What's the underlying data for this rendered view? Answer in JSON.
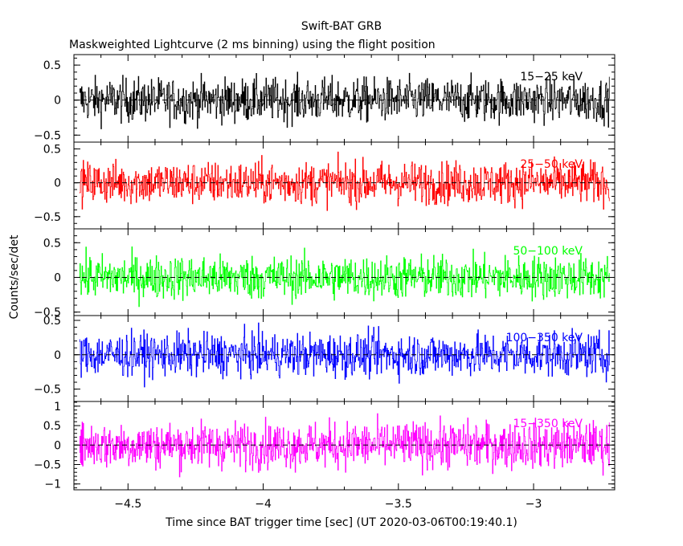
{
  "title": "Swift-BAT GRB",
  "subtitle": "Maskweighted Lightcurve (2 ms binning) using the flight position",
  "ylabel": "Counts/sec/det",
  "xlabel": "Time since BAT trigger time [sec] (UT 2020-03-06T00:19:40.1)",
  "chart_data": {
    "type": "line",
    "title": "Swift-BAT GRB",
    "subtitle": "Maskweighted Lightcurve (2 ms binning) using the flight position",
    "xlabel": "Time since BAT trigger time [sec] (UT 2020-03-06T00:19:40.1)",
    "ylabel": "Counts/sec/det",
    "xlim": [
      -4.7,
      -2.7
    ],
    "x_ticks": [
      -4.5,
      -4,
      -3.5,
      -3
    ],
    "x_tick_labels": [
      "−4.5",
      "−4",
      "−3.5",
      "−3"
    ],
    "data_x_range": [
      -4.68,
      -2.72
    ],
    "bin_size_sec": 0.002,
    "grid": false,
    "panels": [
      {
        "band": "15−25 keV",
        "color": "#000000",
        "ylim": [
          -0.6,
          0.65
        ],
        "ticks": [
          0.5,
          0,
          -0.5
        ],
        "tick_labels": [
          "0.5",
          "0",
          "−0.5"
        ],
        "noise_amplitude": 0.22
      },
      {
        "band": "25−50 keV",
        "color": "#ff0000",
        "ylim": [
          -0.68,
          0.6
        ],
        "ticks": [
          0.5,
          0,
          -0.5
        ],
        "tick_labels": [
          "0.5",
          "0",
          "−0.5"
        ],
        "noise_amplitude": 0.22
      },
      {
        "band": "50−100 keV",
        "color": "#00ff00",
        "ylim": [
          -0.55,
          0.7
        ],
        "ticks": [
          0.5,
          0,
          -0.5
        ],
        "tick_labels": [
          "0.5",
          "0",
          "−0.5"
        ],
        "noise_amplitude": 0.22
      },
      {
        "band": "100−350 keV",
        "color": "#0000ff",
        "ylim": [
          -0.68,
          0.57
        ],
        "ticks": [
          0.5,
          0,
          -0.5
        ],
        "tick_labels": [
          "0.5",
          "0",
          "−0.5"
        ],
        "noise_amplitude": 0.22
      },
      {
        "band": "15−350 keV",
        "color": "#ff00ff",
        "ylim": [
          -1.15,
          1.12
        ],
        "ticks": [
          1,
          0.5,
          0,
          -0.5,
          -1
        ],
        "tick_labels": [
          "1",
          "0.5",
          "0",
          "−0.5",
          "−1"
        ],
        "noise_amplitude": 0.42
      }
    ]
  }
}
